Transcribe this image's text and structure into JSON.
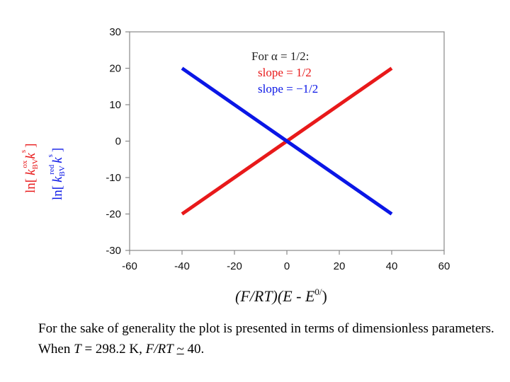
{
  "chart_data": {
    "type": "line",
    "xlabel": {
      "main": "(F/RT)(E - E",
      "sup": "0/",
      "close": ")"
    },
    "ylabel": {
      "red": {
        "a": "ln[",
        "b": "k",
        "c": "BV",
        "d": "ox",
        "e": "k",
        "f": "s",
        "g": "]"
      },
      "blue": {
        "a": "ln[",
        "b": "k",
        "c": "BV",
        "d": "red",
        "e": "k",
        "f": "s",
        "g": "]"
      },
      "red_color": "#e8191a",
      "blue_color": "#0a16e6"
    },
    "xlim": [
      -60,
      60
    ],
    "ylim": [
      -30,
      30
    ],
    "xticks": [
      -60,
      -40,
      -20,
      0,
      20,
      40,
      60
    ],
    "yticks": [
      -30,
      -20,
      -10,
      0,
      10,
      20,
      30
    ],
    "grid": false,
    "legend": {
      "position": "top-right",
      "title": "For α = 1/2:",
      "entries": [
        "slope = 1/2",
        "slope = −1/2"
      ]
    },
    "series": [
      {
        "name": "slope = 1/2",
        "color": "#e8191a",
        "x": [
          -40,
          40
        ],
        "y": [
          -20,
          20
        ]
      },
      {
        "name": "slope = −1/2",
        "color": "#0a16e6",
        "x": [
          -40,
          40
        ],
        "y": [
          20,
          -20
        ]
      }
    ]
  },
  "caption": {
    "text1": "For the sake of generality the plot is presented in terms of dimensionless parameters. When ",
    "T": "T",
    "text2": " = 298.2 K,  ",
    "FRT": "F/RT",
    "approx": "~",
    "text3": " 40."
  }
}
